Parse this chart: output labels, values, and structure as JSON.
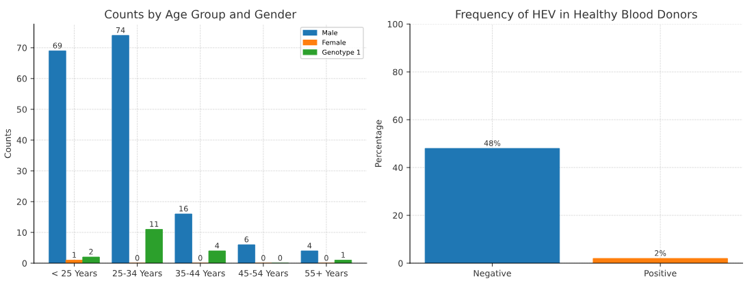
{
  "chart_data": [
    {
      "type": "bar",
      "title": "Counts by Age Group and Gender",
      "ylabel": "Counts",
      "categories": [
        "< 25 Years",
        "25-34 Years",
        "35-44 Years",
        "45-54 Years",
        "55+ Years"
      ],
      "series": [
        {
          "name": "Male",
          "color": "#1f77b4",
          "values": [
            69,
            74,
            16,
            6,
            4
          ]
        },
        {
          "name": "Female",
          "color": "#ff7f0e",
          "values": [
            1,
            0,
            0,
            0,
            0
          ]
        },
        {
          "name": "Genotype 1",
          "color": "#2ca02c",
          "values": [
            2,
            11,
            4,
            0,
            1
          ]
        }
      ],
      "ylim": [
        0,
        77.7
      ],
      "yticks": [
        0,
        10,
        20,
        30,
        40,
        50,
        60,
        70
      ],
      "grid": true,
      "legend": "top right",
      "data_labels": true
    },
    {
      "type": "bar",
      "title": "Frequency of HEV in Healthy Blood Donors",
      "ylabel": "Percentage",
      "categories": [
        "Negative",
        "Positive"
      ],
      "values": [
        48,
        2
      ],
      "colors": [
        "#1f77b4",
        "#ff7f0e"
      ],
      "value_labels": [
        "48%",
        "2%"
      ],
      "ylim": [
        0,
        100
      ],
      "yticks": [
        0,
        20,
        40,
        60,
        80,
        100
      ],
      "grid": true
    }
  ]
}
